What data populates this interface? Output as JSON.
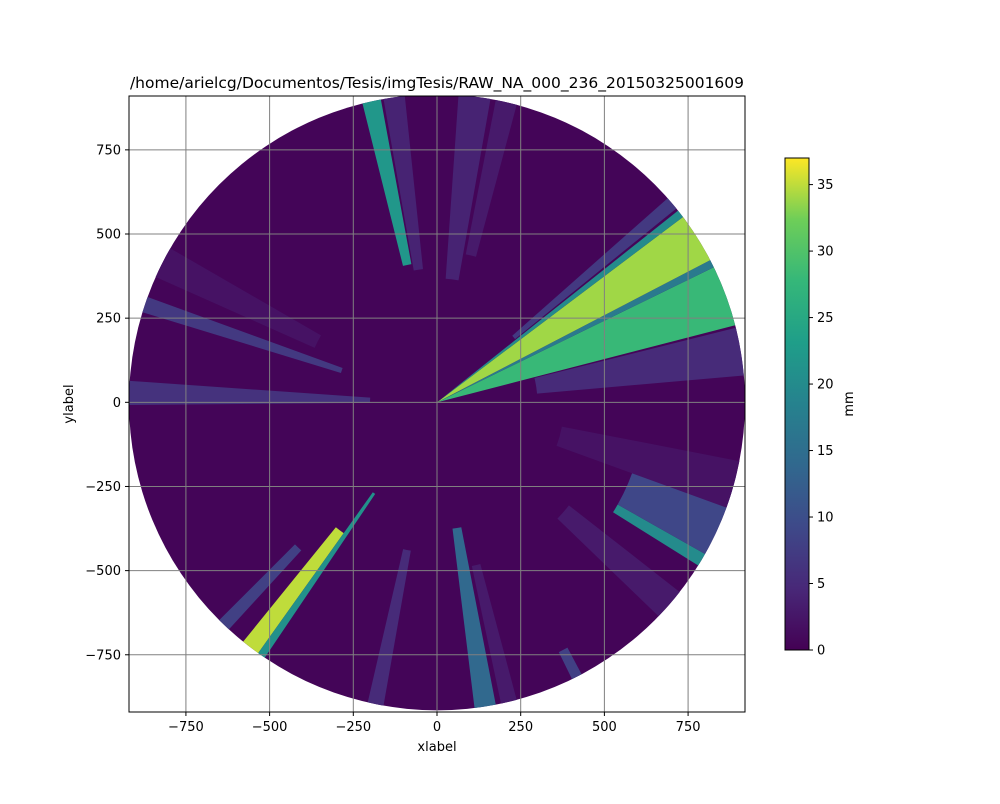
{
  "chart_data": {
    "type": "heatmap",
    "title": "/home/arielcg/Documentos/Tesis/imgTesis/RAW_NA_000_236_20150325001609",
    "xlabel": "xlabel",
    "ylabel": "ylabel",
    "xlim": [
      -920,
      920
    ],
    "ylim": [
      -920,
      910
    ],
    "xticks": [
      -750,
      -500,
      -250,
      0,
      250,
      500,
      750
    ],
    "yticks": [
      -750,
      -500,
      -250,
      0,
      250,
      500,
      750
    ],
    "grid": true,
    "radius": 920,
    "colormap": "viridis",
    "colorbar": {
      "label": "mm",
      "min": 0,
      "max": 37,
      "ticks": [
        0,
        5,
        10,
        15,
        20,
        25,
        30,
        35
      ]
    },
    "background_value": 0.5,
    "rays": [
      {
        "from_deg": 14.5,
        "to_deg": 26.0,
        "r0": 0,
        "r1": 920,
        "value": 28
      },
      {
        "from_deg": 26.0,
        "to_deg": 27.5,
        "r0": 0,
        "r1": 920,
        "value": 17
      },
      {
        "from_deg": 27.5,
        "to_deg": 37.0,
        "r0": 0,
        "r1": 920,
        "value": 34
      },
      {
        "from_deg": 37.0,
        "to_deg": 38.5,
        "r0": 0,
        "r1": 920,
        "value": 20
      },
      {
        "from_deg": 39.0,
        "to_deg": 41.5,
        "r0": 300,
        "r1": 920,
        "value": 7
      },
      {
        "from_deg": 5.0,
        "to_deg": 14.0,
        "r0": 300,
        "r1": 920,
        "value": 5
      },
      {
        "from_deg": 100.5,
        "to_deg": 104.0,
        "r0": 420,
        "r1": 920,
        "value": 22
      },
      {
        "from_deg": 96.0,
        "to_deg": 100.0,
        "r0": 400,
        "r1": 920,
        "value": 4
      },
      {
        "from_deg": 80.0,
        "to_deg": 86.0,
        "r0": 370,
        "r1": 920,
        "value": 4
      },
      {
        "from_deg": 75.0,
        "to_deg": 79.0,
        "r0": 450,
        "r1": 920,
        "value": 3
      },
      {
        "from_deg": 160.0,
        "to_deg": 163.0,
        "r0": 300,
        "r1": 920,
        "value": 7
      },
      {
        "from_deg": 150.0,
        "to_deg": 156.0,
        "r0": 400,
        "r1": 920,
        "value": 2
      },
      {
        "from_deg": 176.0,
        "to_deg": 180.5,
        "r0": 200,
        "r1": 920,
        "value": 6
      },
      {
        "from_deg": 231.0,
        "to_deg": 234.5,
        "r0": 480,
        "r1": 920,
        "value": 35
      },
      {
        "from_deg": 234.5,
        "to_deg": 236.0,
        "r0": 330,
        "r1": 920,
        "value": 21
      },
      {
        "from_deg": 225.0,
        "to_deg": 227.5,
        "r0": 600,
        "r1": 920,
        "value": 8
      },
      {
        "from_deg": 257.0,
        "to_deg": 260.0,
        "r0": 450,
        "r1": 920,
        "value": 5
      },
      {
        "from_deg": 277.0,
        "to_deg": 281.0,
        "r0": 380,
        "r1": 920,
        "value": 14
      },
      {
        "from_deg": 282.0,
        "to_deg": 285.0,
        "r0": 500,
        "r1": 920,
        "value": 3
      },
      {
        "from_deg": 296.0,
        "to_deg": 298.0,
        "r0": 830,
        "r1": 920,
        "value": 8
      },
      {
        "from_deg": 328.0,
        "to_deg": 330.5,
        "r0": 620,
        "r1": 920,
        "value": 20
      },
      {
        "from_deg": 330.5,
        "to_deg": 346.0,
        "r0": 620,
        "r1": 920,
        "value": 9
      },
      {
        "from_deg": 316.0,
        "to_deg": 322.0,
        "r0": 500,
        "r1": 920,
        "value": 3
      },
      {
        "from_deg": 340.0,
        "to_deg": 349.0,
        "r0": 380,
        "r1": 920,
        "value": 2
      }
    ]
  }
}
